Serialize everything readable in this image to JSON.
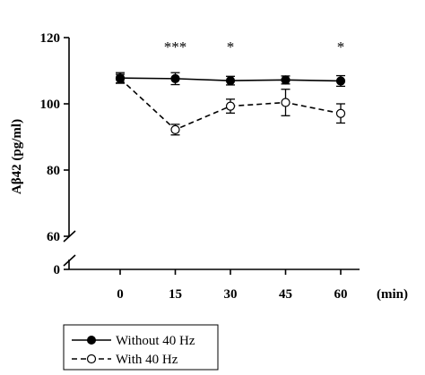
{
  "chart_data": {
    "type": "line",
    "ylabel": "Aβ42 (pg/ml)",
    "xlabel": "(min)",
    "x": [
      0,
      15,
      30,
      45,
      60
    ],
    "x_tick_labels": [
      "0",
      "15",
      "30",
      "45",
      "60"
    ],
    "y_tick_labels_upper": [
      "120",
      "100",
      "80",
      "60"
    ],
    "y_tick_label_lower": "0",
    "ylim_upper": [
      60,
      120
    ],
    "axis_break": true,
    "grid": false,
    "legend_placement": "bottom-left",
    "series": [
      {
        "name": "Without 40 Hz",
        "marker": "filled-circle",
        "line": "solid",
        "values": [
          107.8,
          107.6,
          107.0,
          107.2,
          106.9
        ],
        "errors": [
          1.6,
          1.8,
          1.3,
          1.2,
          1.6
        ]
      },
      {
        "name": "With 40 Hz",
        "marker": "open-circle",
        "line": "dashed",
        "values": [
          107.6,
          92.2,
          99.3,
          100.4,
          97.1
        ],
        "errors": [
          1.3,
          1.6,
          2.1,
          4.0,
          2.9
        ]
      }
    ],
    "significance": [
      {
        "x": 15,
        "label": "***"
      },
      {
        "x": 30,
        "label": "*"
      },
      {
        "x": 60,
        "label": "*"
      }
    ]
  },
  "colors": {
    "ink": "#000000",
    "background": "#ffffff"
  }
}
